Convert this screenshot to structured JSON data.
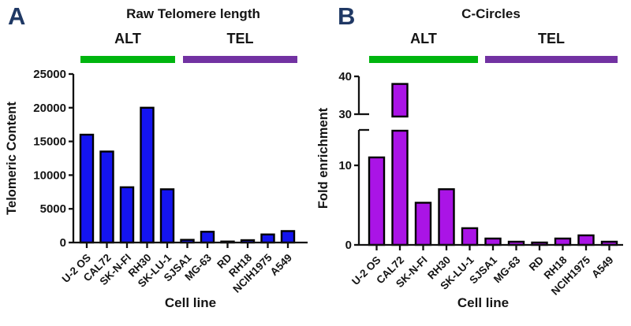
{
  "figure": {
    "letter_color": "#1f3864",
    "panels": [
      {
        "letter": "A"
      },
      {
        "letter": "B"
      }
    ]
  },
  "chart_data": [
    {
      "type": "bar",
      "panel": "A",
      "title": "Raw Telomere length",
      "xlabel": "Cell line",
      "ylabel": "Telomeric Content",
      "categories": [
        "U-2 OS",
        "CAL72",
        "SK-N-FI",
        "RH30",
        "SK-LU-1",
        "SJSA1",
        "MG-63",
        "RD",
        "RH18",
        "NCIH1975",
        "A549"
      ],
      "values": [
        16000,
        13500,
        8200,
        20000,
        7900,
        400,
        1600,
        150,
        350,
        1200,
        1700
      ],
      "ylim": [
        0,
        25000
      ],
      "yticks": [
        0,
        5000,
        10000,
        15000,
        20000,
        25000
      ],
      "axis_break": null,
      "bar_color": "#1414f0",
      "bar_outline": "#000000",
      "grid": "off",
      "legend": "none",
      "groups": [
        {
          "label": "ALT",
          "color": "#00b50f",
          "categories": [
            "U-2 OS",
            "CAL72",
            "SK-N-FI",
            "RH30",
            "SK-LU-1"
          ]
        },
        {
          "label": "TEL",
          "color": "#7232a2",
          "categories": [
            "SJSA1",
            "MG-63",
            "RD",
            "RH18",
            "NCIH1975",
            "A549"
          ]
        }
      ]
    },
    {
      "type": "bar",
      "panel": "B",
      "title": "C-Circles",
      "xlabel": "Cell line",
      "ylabel": "Fold enrichment",
      "categories": [
        "U-2 OS",
        "CAL72",
        "SK-N-FI",
        "RH30",
        "SK-LU-1",
        "SJSA1",
        "MG-63",
        "RD",
        "RH18",
        "NCIH1975",
        "A549"
      ],
      "values": [
        11,
        38,
        5.3,
        7,
        2.1,
        0.8,
        0.4,
        0.3,
        0.8,
        1.2,
        0.4
      ],
      "axis_break": {
        "lower_range": [
          0,
          14.5
        ],
        "upper_range": [
          30,
          40
        ],
        "yticks_lower": [
          0,
          10
        ],
        "yticks_upper": [
          30,
          40
        ]
      },
      "bar_color": "#aa14e6",
      "bar_outline": "#000000",
      "grid": "off",
      "legend": "none",
      "groups": [
        {
          "label": "ALT",
          "color": "#00b50f",
          "categories": [
            "U-2 OS",
            "CAL72",
            "SK-N-FI",
            "RH30",
            "SK-LU-1"
          ]
        },
        {
          "label": "TEL",
          "color": "#7232a2",
          "categories": [
            "SJSA1",
            "MG-63",
            "RD",
            "RH18",
            "NCIH1975",
            "A549"
          ]
        }
      ]
    }
  ]
}
